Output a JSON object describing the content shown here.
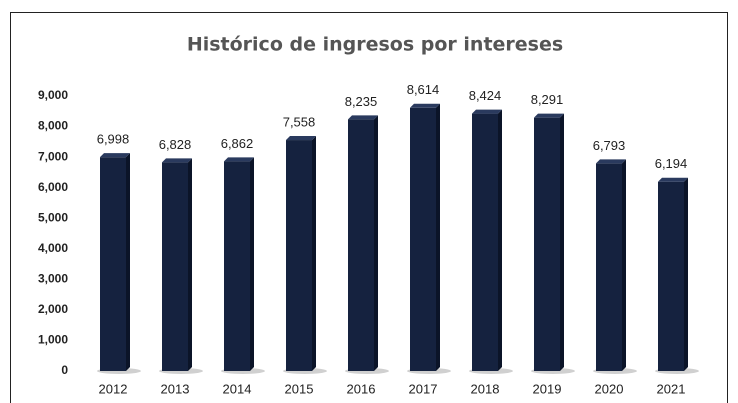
{
  "chart_data": {
    "type": "bar",
    "title": "Histórico de ingresos por intereses",
    "categories": [
      "2012",
      "2013",
      "2014",
      "2015",
      "2016",
      "2017",
      "2018",
      "2019",
      "2020",
      "2021"
    ],
    "values": [
      6998,
      6828,
      6862,
      7558,
      8235,
      8614,
      8424,
      8291,
      6793,
      6194
    ],
    "value_labels": [
      "6,998",
      "6,828",
      "6,862",
      "7,558",
      "8,235",
      "8,614",
      "8,424",
      "8,291",
      "6,793",
      "6,194"
    ],
    "color": "#15223f",
    "ylim": [
      0,
      9000
    ],
    "yticks": [
      0,
      {
        "value": 1000,
        "label": "1,000"
      },
      {
        "value": 2000,
        "label": "2,000"
      },
      {
        "value": 3000,
        "label": "3,000"
      },
      {
        "value": 4000,
        "label": "4,000"
      },
      {
        "value": 5000,
        "label": "5,000"
      },
      {
        "value": 6000,
        "label": "6,000"
      },
      {
        "value": 7000,
        "label": "7,000"
      },
      {
        "value": 8000,
        "label": "8,000"
      },
      {
        "value": 9000,
        "label": "9,000"
      }
    ],
    "grid": false
  }
}
